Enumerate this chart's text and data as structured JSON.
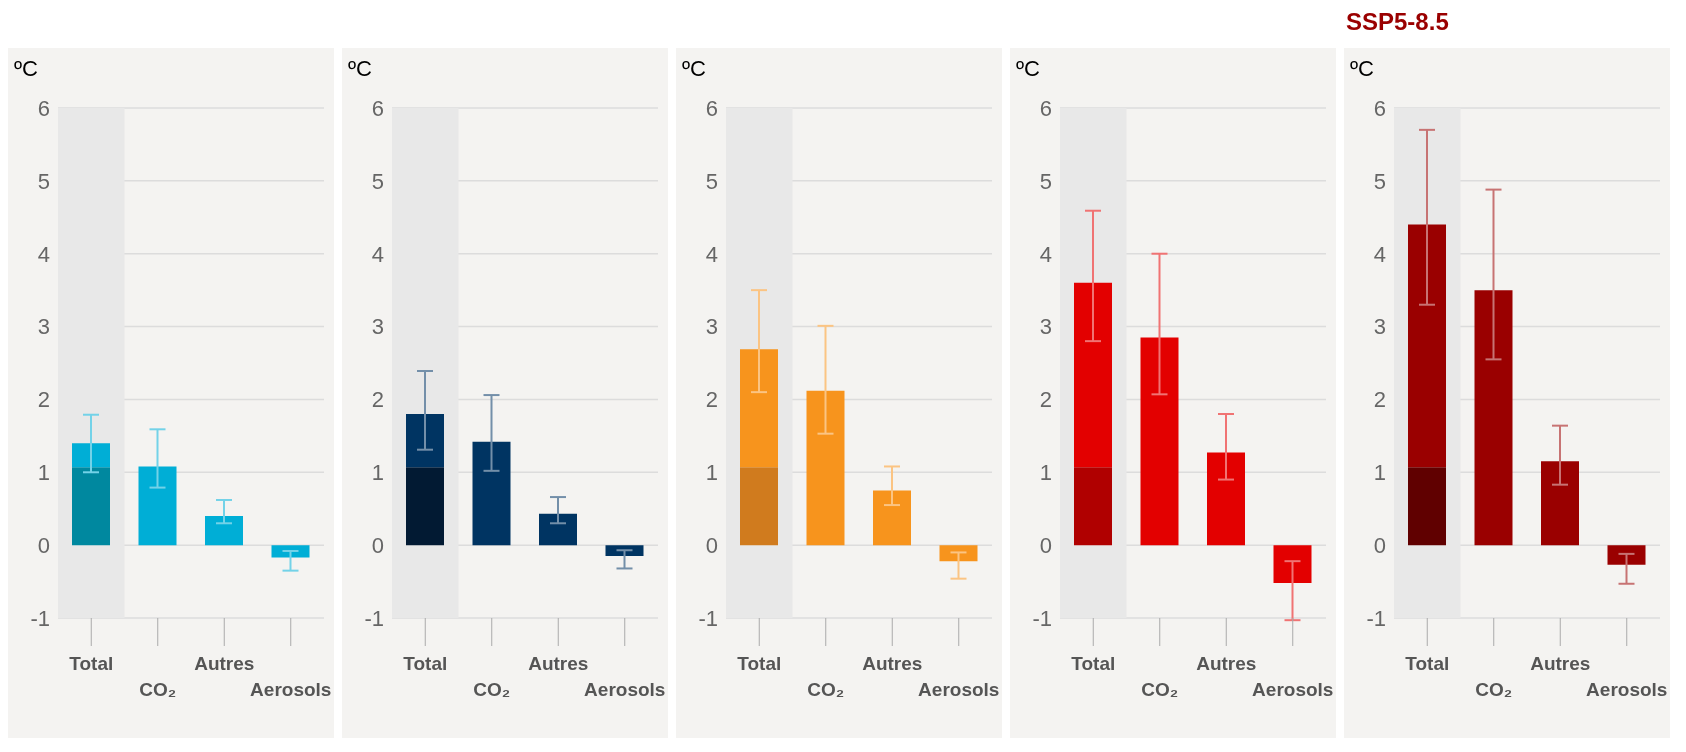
{
  "chart_data": [
    {
      "type": "bar",
      "ylabel": "ºC",
      "categories": [
        "Total",
        "CO₂",
        "Autres",
        "Aerosols"
      ],
      "stacked": true,
      "ylim": [
        -1,
        6
      ],
      "yticks": [
        -1,
        0,
        1,
        2,
        3,
        4,
        5,
        6
      ],
      "grid": "y",
      "bands": [
        {
          "axis": "x",
          "from": "Total",
          "to": "Total",
          "color": "#e8e8e8"
        }
      ],
      "series": [
        {
          "color": "#00889f",
          "values": [
            1.07,
            null,
            null,
            null
          ]
        },
        {
          "color": "#00aed6",
          "values": [
            0.33,
            1.08,
            0.4,
            -0.17
          ],
          "errors": [
            [
              1.0,
              1.79
            ],
            [
              0.79,
              1.59
            ],
            [
              0.3,
              0.62
            ],
            [
              -0.35,
              -0.08
            ]
          ]
        }
      ]
    },
    {
      "type": "bar",
      "ylabel": "ºC",
      "categories": [
        "Total",
        "CO₂",
        "Autres",
        "Aerosols"
      ],
      "stacked": true,
      "ylim": [
        -1,
        6
      ],
      "yticks": [
        -1,
        0,
        1,
        2,
        3,
        4,
        5,
        6
      ],
      "grid": "y",
      "bands": [
        {
          "axis": "x",
          "from": "Total",
          "to": "Total",
          "color": "#e8e8e8"
        }
      ],
      "series": [
        {
          "color": "#021a33",
          "values": [
            1.07,
            null,
            null,
            null
          ]
        },
        {
          "color": "#003462",
          "values": [
            0.73,
            1.42,
            0.43,
            -0.15
          ],
          "errors": [
            [
              1.31,
              2.39
            ],
            [
              1.02,
              2.06
            ],
            [
              0.3,
              0.66
            ],
            [
              -0.32,
              -0.07
            ]
          ]
        }
      ]
    },
    {
      "type": "bar",
      "ylabel": "ºC",
      "categories": [
        "Total",
        "CO₂",
        "Autres",
        "Aerosols"
      ],
      "stacked": true,
      "ylim": [
        -1,
        6
      ],
      "yticks": [
        -1,
        0,
        1,
        2,
        3,
        4,
        5,
        6
      ],
      "grid": "y",
      "bands": [
        {
          "axis": "x",
          "from": "Total",
          "to": "Total",
          "color": "#e8e8e8"
        }
      ],
      "series": [
        {
          "color": "#d07b1e",
          "values": [
            1.07,
            null,
            null,
            null
          ]
        },
        {
          "color": "#f7941d",
          "values": [
            1.62,
            2.12,
            0.75,
            -0.22
          ],
          "errors": [
            [
              2.1,
              3.5
            ],
            [
              1.53,
              3.01
            ],
            [
              0.55,
              1.08
            ],
            [
              -0.46,
              -0.1
            ]
          ]
        }
      ]
    },
    {
      "type": "bar",
      "ylabel": "ºC",
      "categories": [
        "Total",
        "CO₂",
        "Autres",
        "Aerosols"
      ],
      "stacked": true,
      "ylim": [
        -1,
        6
      ],
      "yticks": [
        -1,
        0,
        1,
        2,
        3,
        4,
        5,
        6
      ],
      "grid": "y",
      "bands": [
        {
          "axis": "x",
          "from": "Total",
          "to": "Total",
          "color": "#e8e8e8"
        }
      ],
      "series": [
        {
          "color": "#b00000",
          "values": [
            1.07,
            null,
            null,
            null
          ]
        },
        {
          "color": "#e30000",
          "values": [
            2.53,
            2.85,
            1.27,
            -0.52
          ],
          "errors": [
            [
              2.8,
              4.59
            ],
            [
              2.07,
              4.0
            ],
            [
              0.9,
              1.8
            ],
            [
              -1.03,
              -0.22
            ]
          ]
        }
      ]
    },
    {
      "type": "bar",
      "title": "SSP5-8.5",
      "ylabel": "ºC",
      "categories": [
        "Total",
        "CO₂",
        "Autres",
        "Aerosols"
      ],
      "stacked": true,
      "ylim": [
        -1,
        6
      ],
      "yticks": [
        -1,
        0,
        1,
        2,
        3,
        4,
        5,
        6
      ],
      "grid": "y",
      "bands": [
        {
          "axis": "x",
          "from": "Total",
          "to": "Total",
          "color": "#e8e8e8"
        }
      ],
      "series": [
        {
          "color": "#600000",
          "values": [
            1.07,
            null,
            null,
            null
          ]
        },
        {
          "color": "#9a0000",
          "values": [
            3.33,
            3.5,
            1.15,
            -0.27
          ],
          "errors": [
            [
              3.3,
              5.7
            ],
            [
              2.55,
              4.88
            ],
            [
              0.83,
              1.64
            ],
            [
              -0.53,
              -0.12
            ]
          ]
        }
      ]
    }
  ]
}
